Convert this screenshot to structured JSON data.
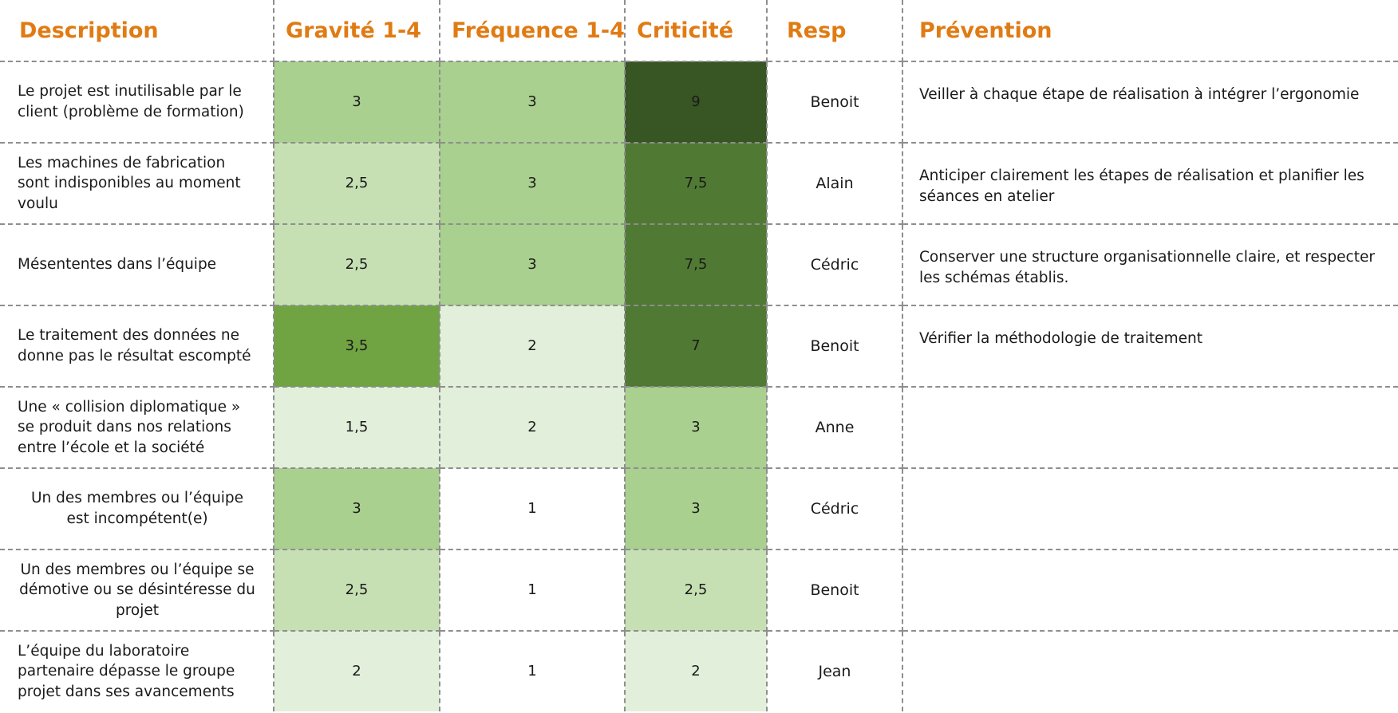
{
  "headers": {
    "description": "Description",
    "gravite": "Gravité 1-4",
    "frequence": "Fréquence 1-4",
    "criticite": "Criticité",
    "resp": "Resp",
    "prevention": "Prévention"
  },
  "shade_colors": {
    "level_1": "#ffffff",
    "level_2": "#e2efda",
    "level_3": "#c6e0b4",
    "level_4": "#a9d08e",
    "level_5": "#70a442",
    "level_6": "#507a34",
    "level_7": "#375623"
  },
  "header_color": "#e07b14",
  "rows": [
    {
      "description": "Le projet est inutilisable par le client (problème de formation)",
      "gravite": "3",
      "frequence": "3",
      "criticite": "9",
      "resp": "Benoit",
      "prevention": "Veiller à chaque étape de réalisation à intégrer l’ergonomie"
    },
    {
      "description": "Les machines de fabrication sont indisponibles au moment voulu",
      "gravite": "2,5",
      "frequence": "3",
      "criticite": "7,5",
      "resp": "Alain",
      "prevention": "Anticiper clairement les étapes de réalisation et planifier les séances en atelier"
    },
    {
      "description": "Mésententes dans l’équipe",
      "gravite": "2,5",
      "frequence": "3",
      "criticite": "7,5",
      "resp": "Cédric",
      "prevention": "Conserver une structure organisationnelle claire, et respecter les schémas établis."
    },
    {
      "description": "Le traitement des données ne donne pas le résultat escompté",
      "gravite": "3,5",
      "frequence": "2",
      "criticite": "7",
      "resp": "Benoit",
      "prevention": "Vérifier la méthodologie de traitement"
    },
    {
      "description": "Une « collision diplomatique » se produit dans nos relations entre l’école et la société",
      "gravite": "1,5",
      "frequence": "2",
      "criticite": "3",
      "resp": "Anne",
      "prevention": ""
    },
    {
      "description": "Un des membres ou l’équipe est incompétent(e)",
      "gravite": "3",
      "frequence": "1",
      "criticite": "3",
      "resp": "Cédric",
      "prevention": ""
    },
    {
      "description": "Un des membres ou l’équipe se démotive ou se désintéresse du projet",
      "gravite": "2,5",
      "frequence": "1",
      "criticite": "2,5",
      "resp": "Benoit",
      "prevention": ""
    },
    {
      "description": "L’équipe du laboratoire partenaire dépasse le groupe projet dans ses avancements",
      "gravite": "2",
      "frequence": "1",
      "criticite": "2",
      "resp": "Jean",
      "prevention": ""
    }
  ]
}
